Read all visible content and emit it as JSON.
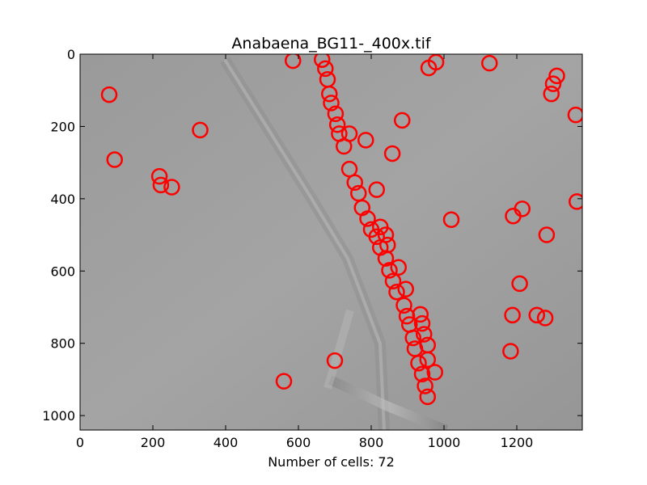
{
  "chart_data": {
    "type": "scatter",
    "title": "Anabaena_BG11-_400x.tif",
    "xlabel": "Number of cells: 72",
    "ylabel": "",
    "xlim": [
      0,
      1380
    ],
    "ylim": [
      1040,
      0
    ],
    "x_ticks": [
      0,
      200,
      400,
      600,
      800,
      1000,
      1200
    ],
    "y_ticks": [
      0,
      200,
      400,
      600,
      800,
      1000
    ],
    "x_tick_labels": [
      "0",
      "200",
      "400",
      "600",
      "800",
      "1000",
      "1200"
    ],
    "y_tick_labels": [
      "0",
      "200",
      "400",
      "600",
      "800",
      "1000"
    ],
    "grid": false,
    "marker": "circle",
    "marker_color": "#ff0000",
    "background": "grayscale microscope image",
    "points": [
      {
        "x": 585,
        "y": 18
      },
      {
        "x": 665,
        "y": 15
      },
      {
        "x": 674,
        "y": 40
      },
      {
        "x": 680,
        "y": 70
      },
      {
        "x": 685,
        "y": 110
      },
      {
        "x": 690,
        "y": 135
      },
      {
        "x": 702,
        "y": 165
      },
      {
        "x": 707,
        "y": 195
      },
      {
        "x": 712,
        "y": 220
      },
      {
        "x": 725,
        "y": 255
      },
      {
        "x": 740,
        "y": 220
      },
      {
        "x": 785,
        "y": 238
      },
      {
        "x": 740,
        "y": 318
      },
      {
        "x": 755,
        "y": 355
      },
      {
        "x": 765,
        "y": 385
      },
      {
        "x": 775,
        "y": 425
      },
      {
        "x": 815,
        "y": 375
      },
      {
        "x": 790,
        "y": 455
      },
      {
        "x": 800,
        "y": 485
      },
      {
        "x": 815,
        "y": 505
      },
      {
        "x": 825,
        "y": 478
      },
      {
        "x": 840,
        "y": 500
      },
      {
        "x": 825,
        "y": 535
      },
      {
        "x": 845,
        "y": 528
      },
      {
        "x": 840,
        "y": 565
      },
      {
        "x": 850,
        "y": 598
      },
      {
        "x": 875,
        "y": 590
      },
      {
        "x": 860,
        "y": 628
      },
      {
        "x": 870,
        "y": 658
      },
      {
        "x": 895,
        "y": 650
      },
      {
        "x": 890,
        "y": 695
      },
      {
        "x": 898,
        "y": 725
      },
      {
        "x": 905,
        "y": 748
      },
      {
        "x": 915,
        "y": 785
      },
      {
        "x": 920,
        "y": 815
      },
      {
        "x": 935,
        "y": 720
      },
      {
        "x": 940,
        "y": 745
      },
      {
        "x": 945,
        "y": 775
      },
      {
        "x": 955,
        "y": 805
      },
      {
        "x": 930,
        "y": 855
      },
      {
        "x": 955,
        "y": 845
      },
      {
        "x": 975,
        "y": 880
      },
      {
        "x": 940,
        "y": 885
      },
      {
        "x": 948,
        "y": 918
      },
      {
        "x": 955,
        "y": 948
      },
      {
        "x": 700,
        "y": 848
      },
      {
        "x": 560,
        "y": 905
      },
      {
        "x": 885,
        "y": 183
      },
      {
        "x": 858,
        "y": 275
      },
      {
        "x": 958,
        "y": 38
      },
      {
        "x": 978,
        "y": 22
      },
      {
        "x": 1125,
        "y": 25
      },
      {
        "x": 1020,
        "y": 458
      },
      {
        "x": 80,
        "y": 112
      },
      {
        "x": 95,
        "y": 292
      },
      {
        "x": 218,
        "y": 338
      },
      {
        "x": 222,
        "y": 362
      },
      {
        "x": 252,
        "y": 368
      },
      {
        "x": 330,
        "y": 210
      },
      {
        "x": 1190,
        "y": 448
      },
      {
        "x": 1215,
        "y": 428
      },
      {
        "x": 1282,
        "y": 500
      },
      {
        "x": 1208,
        "y": 635
      },
      {
        "x": 1188,
        "y": 722
      },
      {
        "x": 1255,
        "y": 722
      },
      {
        "x": 1278,
        "y": 730
      },
      {
        "x": 1183,
        "y": 822
      },
      {
        "x": 1310,
        "y": 60
      },
      {
        "x": 1300,
        "y": 82
      },
      {
        "x": 1295,
        "y": 110
      },
      {
        "x": 1362,
        "y": 168
      },
      {
        "x": 1365,
        "y": 408
      }
    ]
  }
}
